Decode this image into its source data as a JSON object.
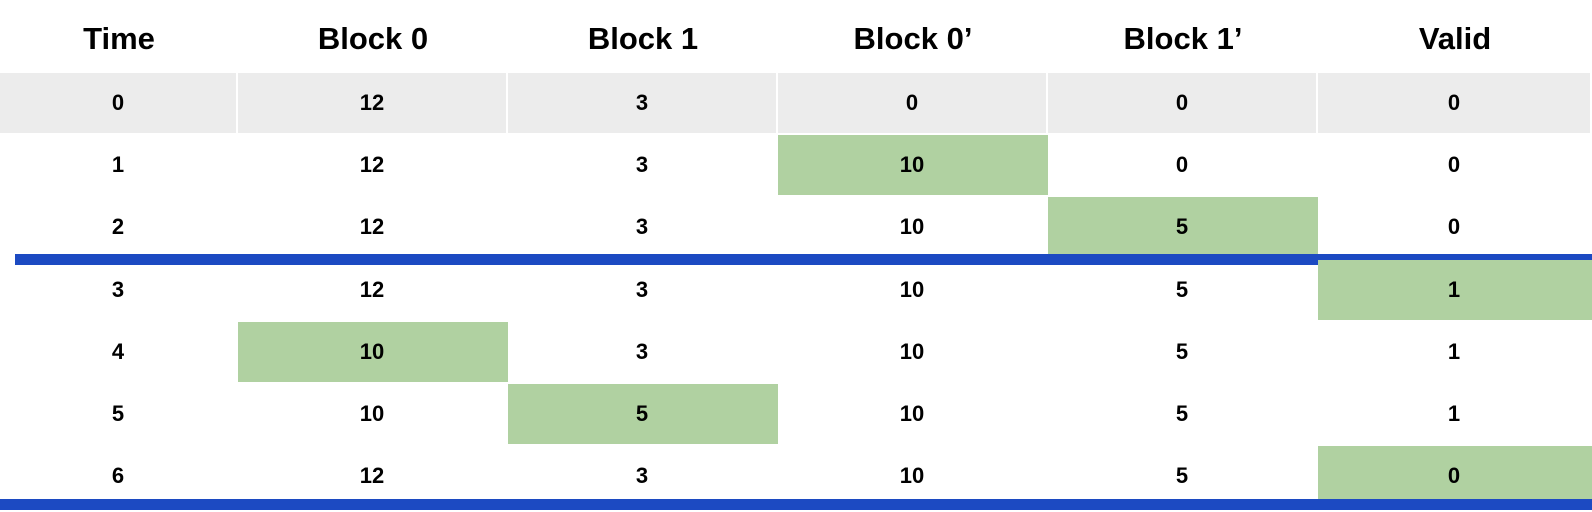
{
  "table": {
    "headers": [
      "Time",
      "Block 0",
      "Block 1",
      "Block 0’",
      "Block 1’",
      "Valid"
    ],
    "rows": [
      {
        "cells": [
          "0",
          "12",
          "3",
          "0",
          "0",
          "0"
        ],
        "highlight": []
      },
      {
        "cells": [
          "1",
          "12",
          "3",
          "10",
          "0",
          "0"
        ],
        "highlight": [
          3
        ]
      },
      {
        "cells": [
          "2",
          "12",
          "3",
          "10",
          "5",
          "0"
        ],
        "highlight": [
          4
        ]
      },
      {
        "cells": [
          "3",
          "12",
          "3",
          "10",
          "5",
          "1"
        ],
        "highlight": [
          5
        ]
      },
      {
        "cells": [
          "4",
          "10",
          "3",
          "10",
          "5",
          "1"
        ],
        "highlight": [
          1
        ]
      },
      {
        "cells": [
          "5",
          "10",
          "5",
          "10",
          "5",
          "1"
        ],
        "highlight": [
          2
        ]
      },
      {
        "cells": [
          "6",
          "12",
          "3",
          "10",
          "5",
          "0"
        ],
        "highlight": [
          5
        ]
      }
    ],
    "first_row_fill": "#ececec",
    "highlight_color": "#b0d1a1",
    "divider_color": "#1c4ac2"
  }
}
